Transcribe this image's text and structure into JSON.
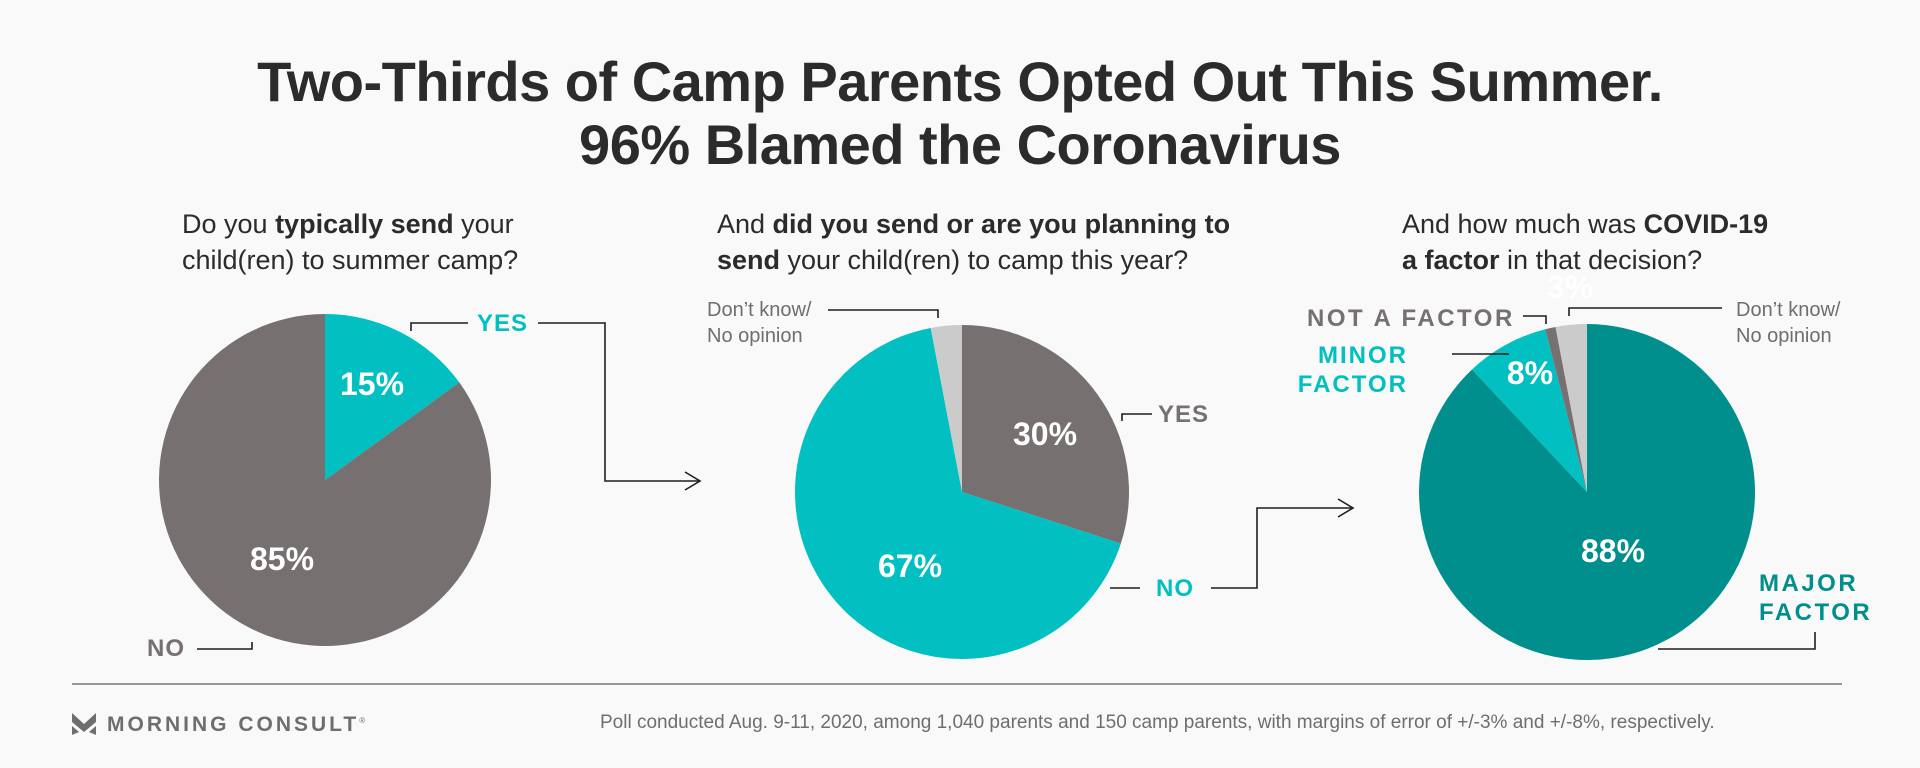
{
  "title": {
    "line1": "Two-Thirds of Camp Parents Opted Out This Summer.",
    "line2": "96% Blamed the Coronavirus"
  },
  "colors": {
    "teal": "#02c0c1",
    "dark_teal": "#008f8c",
    "gray": "#767170",
    "light_gray": "#cccbcc",
    "text": "#2b2b2b",
    "muted": "#6e6e6e",
    "background": "#f9f9f9"
  },
  "questions": [
    {
      "pre": "Do you ",
      "bold": "typically send",
      "post": " your",
      "line2": "child(ren) to summer camp?"
    },
    {
      "pre": "And ",
      "bold": "did you send or are you planning to",
      "post": "",
      "line2_bold": "send",
      "line2": " your child(ren) to camp this year?"
    },
    {
      "pre": "And how much was ",
      "bold": "COVID-19",
      "post": "",
      "line2_bold": "a factor",
      "line2": " in that decision?"
    }
  ],
  "chart_data": [
    {
      "type": "pie",
      "title": "Do you typically send your child(ren) to summer camp?",
      "slices": [
        {
          "label": "YES",
          "value": 15,
          "display": "15%",
          "color": "#02c0c1"
        },
        {
          "label": "NO",
          "value": 85,
          "display": "85%",
          "color": "#767170"
        }
      ],
      "start": "12 o'clock, clockwise"
    },
    {
      "type": "pie",
      "title": "And did you send or are you planning to send your child(ren) to camp this year?",
      "slices": [
        {
          "label": "YES",
          "value": 30,
          "display": "30%",
          "color": "#767170"
        },
        {
          "label": "NO",
          "value": 67,
          "display": "67%",
          "color": "#02c0c1"
        },
        {
          "label": "Don’t know/ No opinion",
          "value": 3,
          "display": "",
          "color": "#cccbcc"
        }
      ],
      "start": "12 o'clock, clockwise"
    },
    {
      "type": "pie",
      "title": "And how much was COVID-19 a factor in that decision?",
      "slices": [
        {
          "label": "MAJOR FACTOR",
          "value": 88,
          "display": "88%",
          "color": "#008f8c"
        },
        {
          "label": "MINOR FACTOR",
          "value": 8,
          "display": "8%",
          "color": "#02c0c1"
        },
        {
          "label": "NOT A FACTOR",
          "value": 1,
          "display": "",
          "color": "#767170"
        },
        {
          "label": "Don’t know/ No opinion",
          "value": 3,
          "display": "3%",
          "color": "#cccbcc"
        }
      ],
      "start": "12 o'clock, clockwise"
    }
  ],
  "labels": {
    "p1_yes": "YES",
    "p1_no": "NO",
    "p2_dk_line1": "Don’t know/",
    "p2_dk_line2": "No opinion",
    "p2_yes": "YES",
    "p2_no": "NO",
    "p3_not": "NOT A FACTOR",
    "p3_minor_line1": "MINOR",
    "p3_minor_line2": "FACTOR",
    "p3_major_line1": "MAJOR",
    "p3_major_line2": "FACTOR",
    "p3_dk_line1": "Don’t know/",
    "p3_dk_line2": "No opinion"
  },
  "footer": {
    "brand": "MORNING CONSULT",
    "brand_mark": "®",
    "note": "Poll conducted Aug. 9-11, 2020, among 1,040 parents and 150 camp parents, with margins of error of +/-3% and +/-8%, respectively."
  }
}
